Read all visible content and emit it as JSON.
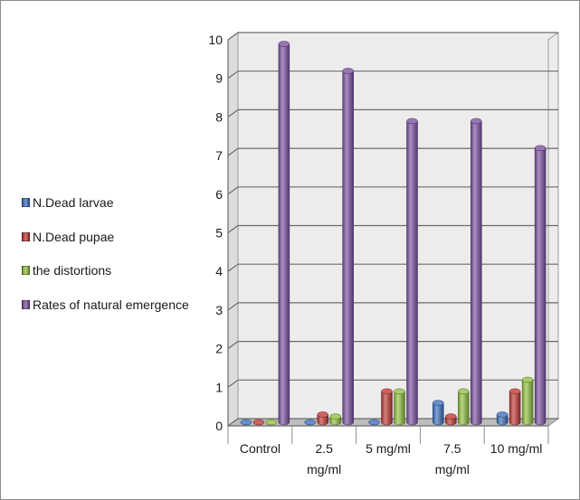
{
  "chart_data": {
    "type": "bar",
    "title": "",
    "xlabel": "",
    "ylabel": "",
    "ylim": [
      0,
      10
    ],
    "yticks": [
      0,
      1,
      2,
      3,
      4,
      5,
      6,
      7,
      8,
      9,
      10
    ],
    "categories": [
      [
        "Control"
      ],
      [
        "2.5",
        "mg/ml"
      ],
      [
        "5 mg/ml"
      ],
      [
        "7.5",
        "mg/ml"
      ],
      [
        "10 mg/ml"
      ]
    ],
    "series": [
      {
        "name": "N.Dead larvae",
        "color": "#3f72c4",
        "values": [
          0,
          0,
          0,
          0.5,
          0.2
        ]
      },
      {
        "name": "N.Dead pupae",
        "color": "#c43a35",
        "values": [
          0,
          0.2,
          0.8,
          0.15,
          0.8
        ]
      },
      {
        "name": "the distortions",
        "color": "#92c13f",
        "values": [
          0,
          0.15,
          0.8,
          0.8,
          1.1
        ]
      },
      {
        "name": "Rates of natural emergence",
        "color": "#7e52a3",
        "values": [
          9.8,
          9.1,
          7.8,
          7.8,
          7.1
        ]
      }
    ],
    "grid": true,
    "legend_position": "left",
    "style": "3d-cylinder"
  }
}
